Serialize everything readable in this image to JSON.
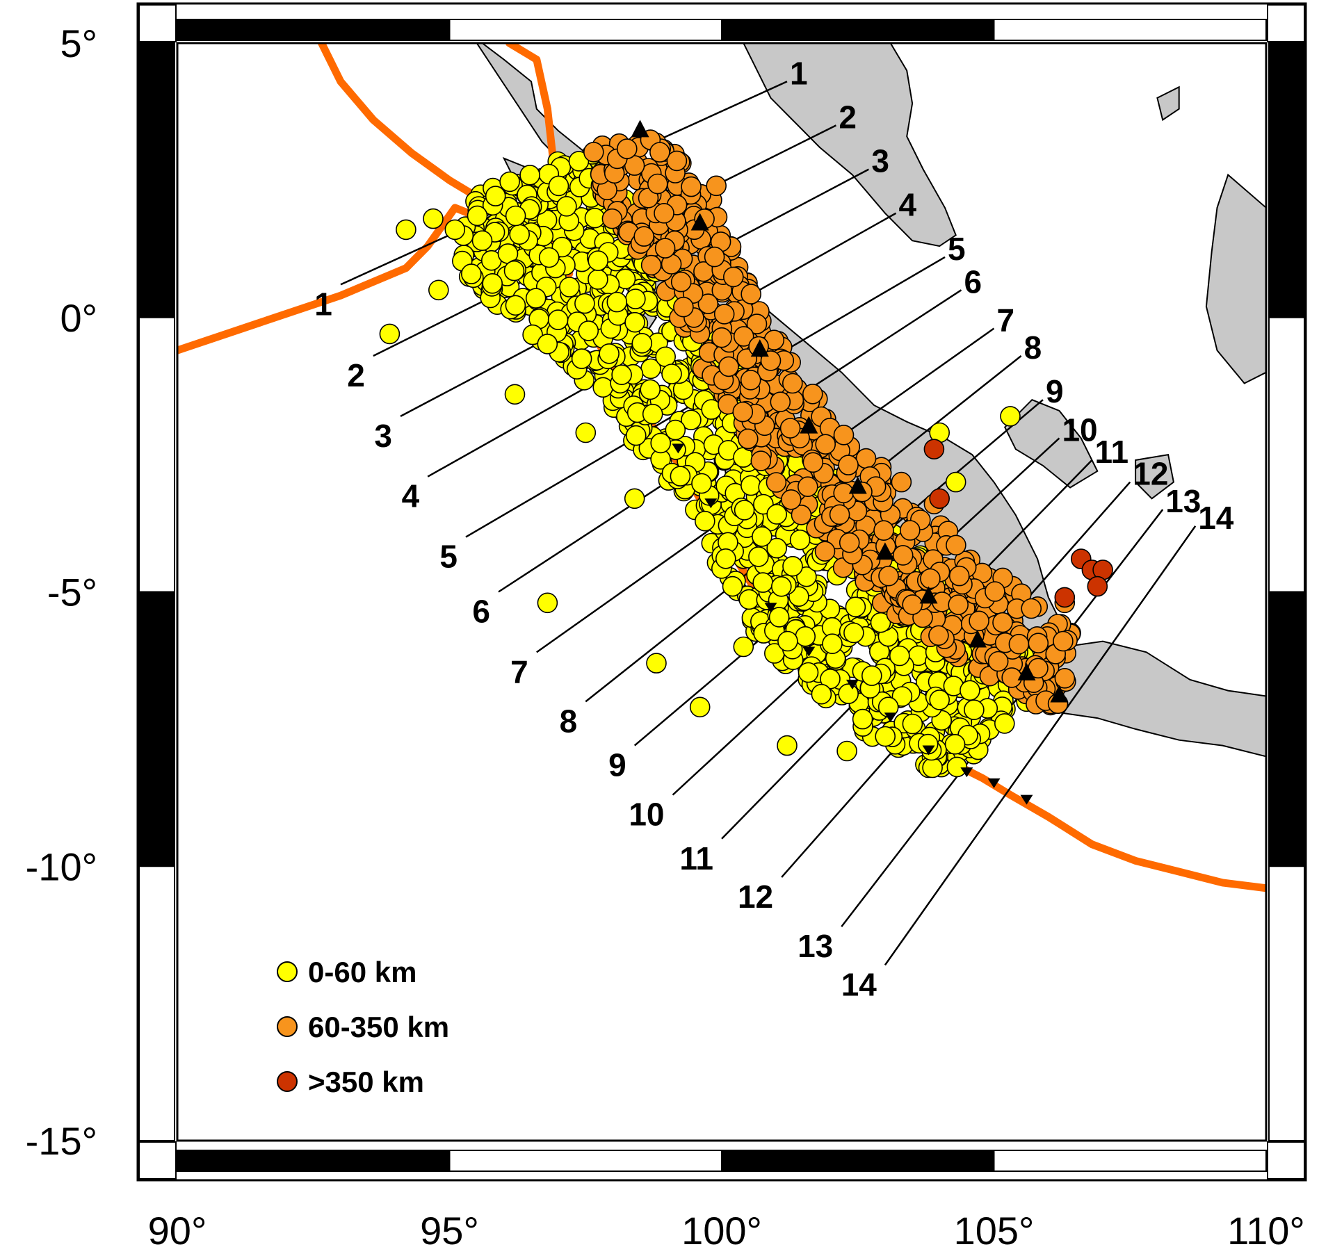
{
  "map": {
    "lon_range": [
      90,
      110
    ],
    "lat_range": [
      -15,
      5
    ],
    "x_ticks": [
      {
        "value": 90,
        "label": "90°"
      },
      {
        "value": 95,
        "label": "95°"
      },
      {
        "value": 100,
        "label": "100°"
      },
      {
        "value": 105,
        "label": "105°"
      },
      {
        "value": 110,
        "label": "110°"
      }
    ],
    "y_ticks": [
      {
        "value": 5,
        "label": "5°"
      },
      {
        "value": 0,
        "label": "0°"
      },
      {
        "value": -5,
        "label": "-5°"
      },
      {
        "value": -10,
        "label": "-10°"
      },
      {
        "value": -15,
        "label": "-15°"
      }
    ],
    "frame_style": "black-and-white alternating 5° border",
    "colors": {
      "land": "#c8c8c8",
      "trench": "#ff6a00",
      "shallow": "#ffff00",
      "intermediate": "#f7941d",
      "deep": "#cc3300"
    }
  },
  "legend": {
    "position": "bottom-left",
    "items": [
      {
        "label": "0-60 km",
        "color": "#ffff00"
      },
      {
        "label": "60-350 km",
        "color": "#f7941d"
      },
      {
        "label": ">350 km",
        "color": "#cc3300"
      }
    ]
  },
  "profiles": [
    {
      "id": "1",
      "start": [
        93.0,
        0.6
      ],
      "end": [
        101.2,
        4.3
      ]
    },
    {
      "id": "2",
      "start": [
        93.6,
        -0.7
      ],
      "end": [
        102.1,
        3.5
      ]
    },
    {
      "id": "3",
      "start": [
        94.1,
        -1.8
      ],
      "end": [
        102.7,
        2.7
      ]
    },
    {
      "id": "4",
      "start": [
        94.6,
        -2.9
      ],
      "end": [
        103.2,
        1.9
      ]
    },
    {
      "id": "5",
      "start": [
        95.3,
        -4.0
      ],
      "end": [
        104.1,
        1.1
      ]
    },
    {
      "id": "6",
      "start": [
        95.9,
        -5.0
      ],
      "end": [
        104.4,
        0.5
      ]
    },
    {
      "id": "7",
      "start": [
        96.6,
        -6.1
      ],
      "end": [
        105.0,
        -0.2
      ]
    },
    {
      "id": "8",
      "start": [
        97.5,
        -7.0
      ],
      "end": [
        105.5,
        -0.7
      ]
    },
    {
      "id": "9",
      "start": [
        98.4,
        -7.8
      ],
      "end": [
        105.9,
        -1.5
      ]
    },
    {
      "id": "10",
      "start": [
        99.1,
        -8.7
      ],
      "end": [
        106.2,
        -2.2
      ]
    },
    {
      "id": "11",
      "start": [
        100.0,
        -9.5
      ],
      "end": [
        106.8,
        -2.6
      ]
    },
    {
      "id": "12",
      "start": [
        101.1,
        -10.2
      ],
      "end": [
        107.5,
        -3.0
      ]
    },
    {
      "id": "13",
      "start": [
        102.2,
        -11.1
      ],
      "end": [
        108.1,
        -3.5
      ]
    },
    {
      "id": "14",
      "start": [
        103.0,
        -11.8
      ],
      "end": [
        108.7,
        -3.8
      ]
    }
  ],
  "trench_lines": [
    [
      [
        90.0,
        -0.6
      ],
      [
        91.5,
        -0.1
      ],
      [
        93.0,
        0.4
      ],
      [
        94.2,
        0.9
      ],
      [
        94.6,
        1.3
      ],
      [
        95.1,
        2.0
      ],
      [
        95.6,
        1.8
      ],
      [
        96.2,
        1.5
      ],
      [
        96.8,
        1.0
      ],
      [
        97.3,
        0.4
      ],
      [
        97.7,
        -0.4
      ],
      [
        98.1,
        -1.1
      ],
      [
        98.6,
        -1.8
      ],
      [
        99.1,
        -2.5
      ],
      [
        99.6,
        -3.3
      ],
      [
        100.2,
        -4.3
      ],
      [
        100.7,
        -5.1
      ],
      [
        101.2,
        -5.8
      ],
      [
        101.9,
        -6.4
      ],
      [
        102.6,
        -7.0
      ],
      [
        103.3,
        -7.6
      ],
      [
        104.2,
        -8.1
      ],
      [
        104.8,
        -8.4
      ],
      [
        105.3,
        -8.7
      ],
      [
        106.0,
        -9.1
      ],
      [
        106.8,
        -9.6
      ],
      [
        107.6,
        -9.9
      ],
      [
        108.4,
        -10.1
      ],
      [
        109.2,
        -10.3
      ],
      [
        110.0,
        -10.4
      ]
    ],
    [
      [
        92.6,
        5.1
      ],
      [
        93.0,
        4.3
      ],
      [
        93.6,
        3.6
      ],
      [
        94.3,
        3.0
      ],
      [
        95.0,
        2.5
      ],
      [
        95.5,
        2.2
      ],
      [
        96.0,
        1.9
      ],
      [
        96.5,
        1.7
      ],
      [
        96.9,
        1.3
      ],
      [
        97.2,
        0.8
      ]
    ],
    [
      [
        96.1,
        5.0
      ],
      [
        96.6,
        4.7
      ],
      [
        96.8,
        3.8
      ],
      [
        96.9,
        2.9
      ],
      [
        97.0,
        2.0
      ],
      [
        96.9,
        1.5
      ],
      [
        96.7,
        1.3
      ],
      [
        96.2,
        1.0
      ]
    ]
  ],
  "land_polygons": [
    [
      [
        95.6,
        5.0
      ],
      [
        96.0,
        4.7
      ],
      [
        96.5,
        4.3
      ],
      [
        96.6,
        3.8
      ],
      [
        97.0,
        3.4
      ],
      [
        97.5,
        3.0
      ],
      [
        97.9,
        2.6
      ],
      [
        98.3,
        2.2
      ],
      [
        98.9,
        1.8
      ],
      [
        99.4,
        1.4
      ],
      [
        100.0,
        1.0
      ],
      [
        100.4,
        0.5
      ],
      [
        101.0,
        0.0
      ],
      [
        101.6,
        -0.5
      ],
      [
        102.2,
        -1.0
      ],
      [
        102.8,
        -1.6
      ],
      [
        103.4,
        -1.9
      ],
      [
        104.1,
        -2.2
      ],
      [
        104.6,
        -2.5
      ],
      [
        105.0,
        -3.0
      ],
      [
        105.4,
        -3.6
      ],
      [
        105.8,
        -4.4
      ],
      [
        106.0,
        -5.1
      ],
      [
        106.3,
        -5.7
      ],
      [
        106.5,
        -6.1
      ],
      [
        106.4,
        -6.5
      ],
      [
        105.9,
        -6.2
      ],
      [
        105.5,
        -5.9
      ],
      [
        104.9,
        -5.8
      ],
      [
        104.2,
        -5.4
      ],
      [
        103.3,
        -4.9
      ],
      [
        102.4,
        -4.1
      ],
      [
        101.5,
        -3.3
      ],
      [
        100.8,
        -2.5
      ],
      [
        100.2,
        -1.7
      ],
      [
        99.6,
        -1.0
      ],
      [
        99.1,
        -0.2
      ],
      [
        98.7,
        0.6
      ],
      [
        98.3,
        1.3
      ],
      [
        97.8,
        2.1
      ],
      [
        97.2,
        2.7
      ],
      [
        96.7,
        3.2
      ],
      [
        96.3,
        3.8
      ],
      [
        95.9,
        4.4
      ],
      [
        95.5,
        5.0
      ]
    ],
    [
      [
        102.5,
        5.0
      ],
      [
        103.1,
        5.0
      ],
      [
        103.4,
        4.5
      ],
      [
        103.5,
        3.9
      ],
      [
        103.4,
        3.3
      ],
      [
        103.7,
        2.7
      ],
      [
        104.1,
        2.0
      ],
      [
        104.3,
        1.5
      ],
      [
        104.0,
        1.3
      ],
      [
        103.5,
        1.4
      ],
      [
        103.0,
        1.9
      ],
      [
        102.4,
        2.6
      ],
      [
        101.8,
        3.1
      ],
      [
        101.3,
        3.6
      ],
      [
        100.9,
        4.0
      ],
      [
        100.6,
        4.6
      ],
      [
        100.4,
        5.0
      ]
    ],
    [
      [
        106.3,
        -6.0
      ],
      [
        107.0,
        -5.9
      ],
      [
        107.8,
        -6.1
      ],
      [
        108.6,
        -6.6
      ],
      [
        109.3,
        -6.8
      ],
      [
        110.0,
        -6.9
      ],
      [
        110.0,
        -8.0
      ],
      [
        109.2,
        -7.8
      ],
      [
        108.4,
        -7.7
      ],
      [
        107.6,
        -7.5
      ],
      [
        106.9,
        -7.3
      ],
      [
        106.2,
        -7.2
      ],
      [
        105.7,
        -6.8
      ],
      [
        106.0,
        -6.4
      ]
    ],
    [
      [
        105.2,
        -2.0
      ],
      [
        105.7,
        -1.5
      ],
      [
        106.2,
        -1.7
      ],
      [
        106.6,
        -2.2
      ],
      [
        106.9,
        -2.8
      ],
      [
        106.4,
        -3.1
      ],
      [
        105.9,
        -2.7
      ],
      [
        105.4,
        -2.4
      ]
    ],
    [
      [
        107.6,
        -2.6
      ],
      [
        108.2,
        -2.5
      ],
      [
        108.3,
        -3.0
      ],
      [
        107.9,
        -3.3
      ],
      [
        107.6,
        -3.0
      ]
    ],
    [
      [
        109.3,
        2.6
      ],
      [
        110.0,
        2.0
      ],
      [
        110.0,
        -1.0
      ],
      [
        109.6,
        -1.2
      ],
      [
        109.1,
        -0.6
      ],
      [
        108.9,
        0.2
      ],
      [
        109.0,
        1.2
      ],
      [
        109.1,
        2.0
      ]
    ],
    [
      [
        108.0,
        4.0
      ],
      [
        108.4,
        4.2
      ],
      [
        108.4,
        3.8
      ],
      [
        108.1,
        3.6
      ]
    ],
    [
      [
        96.0,
        2.9
      ],
      [
        96.5,
        2.7
      ],
      [
        96.2,
        2.5
      ]
    ],
    [
      [
        97.0,
        1.6
      ],
      [
        97.6,
        1.1
      ],
      [
        97.2,
        0.9
      ]
    ],
    [
      [
        98.5,
        0.2
      ],
      [
        98.8,
        0.0
      ],
      [
        98.6,
        -0.3
      ]
    ],
    [
      [
        99.0,
        -1.0
      ],
      [
        99.4,
        -1.4
      ],
      [
        99.1,
        -1.6
      ]
    ],
    [
      [
        100.0,
        -2.4
      ],
      [
        100.4,
        -2.9
      ],
      [
        100.1,
        -3.0
      ]
    ]
  ],
  "seismicity_zones": [
    {
      "depth_class": "shallow",
      "count": 1100,
      "points": [
        [
          95.2,
          2.1
        ],
        [
          96.2,
          2.6
        ],
        [
          97.8,
          3.1
        ],
        [
          98.5,
          2.0
        ],
        [
          100.8,
          -1.5
        ],
        [
          103.5,
          -4.2
        ],
        [
          106.3,
          -6.8
        ],
        [
          105.6,
          -7.0
        ],
        [
          104.3,
          -8.5
        ],
        [
          102.6,
          -7.6
        ],
        [
          100.6,
          -5.8
        ],
        [
          99.1,
          -3.1
        ],
        [
          97.1,
          -0.8
        ],
        [
          95.2,
          0.8
        ]
      ]
    },
    {
      "depth_class": "intermediate",
      "count": 650,
      "points": [
        [
          97.6,
          3.1
        ],
        [
          98.9,
          3.3
        ],
        [
          99.8,
          2.3
        ],
        [
          100.5,
          0.6
        ],
        [
          101.5,
          -1.2
        ],
        [
          102.8,
          -2.6
        ],
        [
          104.6,
          -4.3
        ],
        [
          106.5,
          -5.8
        ],
        [
          106.2,
          -7.3
        ],
        [
          104.3,
          -6.2
        ],
        [
          102.1,
          -4.6
        ],
        [
          100.7,
          -2.6
        ],
        [
          99.6,
          -0.9
        ],
        [
          98.9,
          0.6
        ],
        [
          97.9,
          1.9
        ]
      ]
    }
  ],
  "outlier_quakes": {
    "shallow": [
      [
        94.2,
        1.6
      ],
      [
        95.1,
        1.6
      ],
      [
        94.8,
        0.5
      ],
      [
        93.9,
        -0.3
      ],
      [
        96.2,
        -1.4
      ],
      [
        96.8,
        -5.2
      ],
      [
        97.5,
        -2.1
      ],
      [
        98.4,
        -3.3
      ],
      [
        98.8,
        -6.3
      ],
      [
        99.6,
        -7.1
      ],
      [
        101.2,
        -7.8
      ],
      [
        102.3,
        -7.9
      ],
      [
        104.3,
        -3.0
      ],
      [
        104.0,
        -2.1
      ],
      [
        105.3,
        -1.8
      ],
      [
        100.4,
        -6.0
      ],
      [
        95.6,
        1.4
      ],
      [
        94.7,
        1.8
      ]
    ],
    "intermediate": [
      [
        99.9,
        2.4
      ],
      [
        101.3,
        -1.2
      ],
      [
        103.3,
        -3.0
      ],
      [
        103.9,
        -3.4
      ],
      [
        106.3,
        -5.2
      ]
    ],
    "deep": [
      [
        103.9,
        -2.4
      ],
      [
        104.0,
        -3.3
      ],
      [
        106.3,
        -5.1
      ],
      [
        106.6,
        -4.4
      ],
      [
        106.8,
        -4.6
      ],
      [
        107.0,
        -4.6
      ],
      [
        106.9,
        -4.9
      ]
    ]
  },
  "volcanoes": [
    [
      98.5,
      3.4
    ],
    [
      99.6,
      1.7
    ],
    [
      100.7,
      -0.6
    ],
    [
      101.6,
      -2.0
    ],
    [
      102.5,
      -3.1
    ],
    [
      103.0,
      -4.3
    ],
    [
      103.8,
      -5.1
    ],
    [
      104.7,
      -5.9
    ],
    [
      105.6,
      -6.5
    ],
    [
      106.2,
      -6.9
    ]
  ],
  "trench_teeth": [
    [
      100.9,
      -5.2
    ],
    [
      101.6,
      -6.0
    ],
    [
      102.4,
      -6.6
    ],
    [
      103.1,
      -7.2
    ],
    [
      103.8,
      -7.8
    ],
    [
      104.5,
      -8.2
    ],
    [
      105.0,
      -8.4
    ],
    [
      105.6,
      -8.7
    ],
    [
      99.2,
      -2.3
    ],
    [
      99.8,
      -3.3
    ]
  ]
}
